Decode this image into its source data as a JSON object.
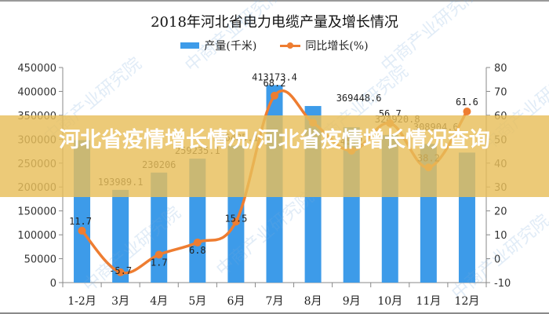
{
  "chart_data": {
    "type": "bar",
    "title": "2018年河北省电力电缆产量及增长情况",
    "categories": [
      "1-2月",
      "3月",
      "4月",
      "5月",
      "6月",
      "7月",
      "8月",
      "9月",
      "10月",
      "11月",
      "12月"
    ],
    "series": [
      {
        "name": "产量(千米)",
        "type": "bar",
        "axis": "left",
        "color": "#3d9be9",
        "values": [
          298000,
          193989.1,
          230206,
          259235.1,
          286485.1,
          413173.4,
          369448.6,
          324920.8,
          308904.6,
          290000,
          272000
        ]
      },
      {
        "name": "同比增长(%)",
        "type": "line",
        "axis": "right",
        "color": "#ee7d31",
        "values": [
          11.7,
          -5.7,
          1.7,
          6.8,
          15.5,
          68.2,
          56.9,
          45.2,
          56.7,
          38.2,
          61.6
        ]
      }
    ],
    "bar_labels": [
      "",
      "193989.1",
      "230206",
      "259235.1",
      "286485.1",
      "413173.4",
      "369448.6",
      "324920.8",
      "308904.6",
      "",
      ""
    ],
    "line_labels": [
      "11.7",
      "-5.7",
      "1.7",
      "6.8",
      "15.5",
      "68.2",
      "",
      "45.2",
      "56.7",
      "38.2",
      "61.6"
    ],
    "xlabel": "",
    "ylabel_left": "",
    "ylabel_right": "",
    "ylim_left": [
      0,
      450000
    ],
    "ylim_right": [
      -10,
      80
    ],
    "yticks_left": [
      "0",
      "50000",
      "100000",
      "150000",
      "200000",
      "250000",
      "300000",
      "350000",
      "400000",
      "450000"
    ],
    "yticks_right": [
      "-10",
      "0",
      "10",
      "20",
      "30",
      "40",
      "50",
      "60",
      "70",
      "80"
    ],
    "grid": false,
    "legend_position": "top"
  },
  "legend": {
    "bar_label": "产量(千米)",
    "line_label": "同比增长(%)"
  },
  "banner": {
    "text": "河北省疫情增长情况/河北省疫情增长情况查询"
  },
  "watermark": "中商产业研究院",
  "colors": {
    "bar": "#3d9be9",
    "line": "#ee7d31",
    "banner": "#e8be5a"
  }
}
